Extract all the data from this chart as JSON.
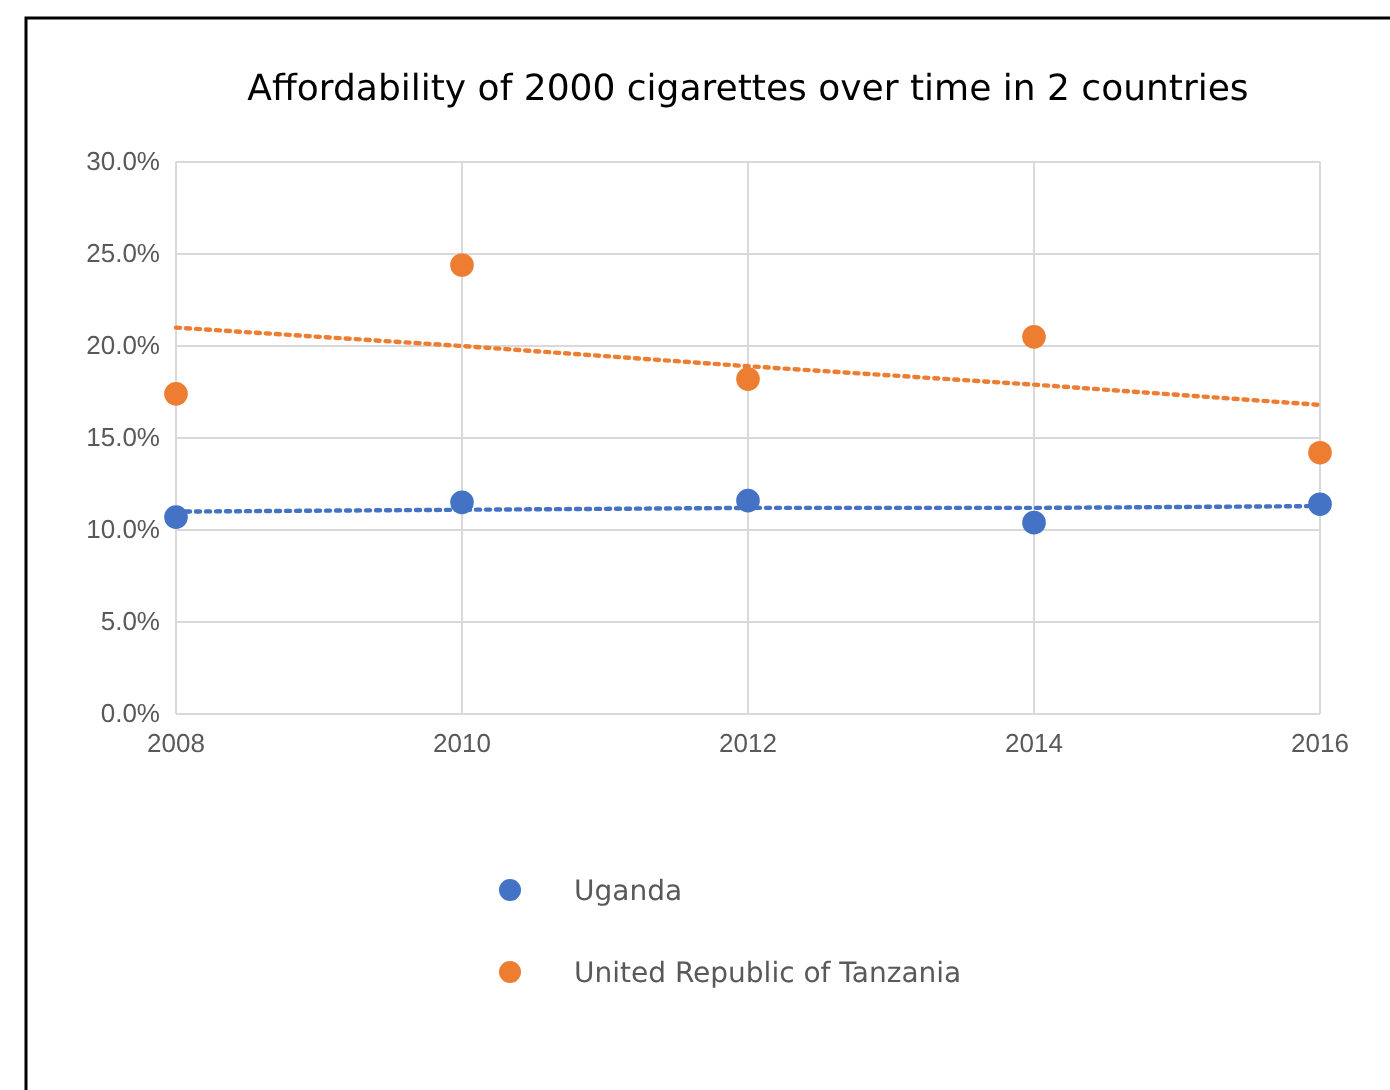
{
  "chart_data": {
    "type": "scatter",
    "title": "Affordability of 2000 cigarettes over time in 2 countries",
    "x": [
      2008,
      2010,
      2012,
      2014,
      2016
    ],
    "xlim": [
      2008,
      2016
    ],
    "xticks": [
      2008,
      2010,
      2012,
      2014,
      2016
    ],
    "ylim": [
      0,
      30
    ],
    "yticks": [
      {
        "value": 0,
        "label": "0.0%"
      },
      {
        "value": 5,
        "label": "5.0%"
      },
      {
        "value": 10,
        "label": "10.0%"
      },
      {
        "value": 15,
        "label": "15.0%"
      },
      {
        "value": 20,
        "label": "20.0%"
      },
      {
        "value": 25,
        "label": "25.0%"
      },
      {
        "value": 30,
        "label": "30.0%"
      }
    ],
    "grid": true,
    "legend": "bottom",
    "marker": "circle",
    "series": [
      {
        "name": "Uganda",
        "color": "#4472c4",
        "values": [
          10.7,
          11.5,
          11.6,
          10.4,
          11.4
        ]
      },
      {
        "name": "United Republic of Tanzania",
        "color": "#ed7d31",
        "values": [
          17.4,
          24.4,
          18.2,
          20.5,
          14.2
        ]
      },
      {
        "type": "line",
        "color": "#4472c4",
        "values": [
          11.0,
          11.1,
          11.2,
          11.2,
          11.3
        ],
        "line_style": "dotted",
        "marker": "none"
      },
      {
        "type": "line",
        "color": "#ed7d31",
        "values": [
          21.0,
          20.0,
          18.9,
          17.9,
          16.8
        ],
        "line_style": "dotted",
        "marker": "none"
      }
    ]
  }
}
